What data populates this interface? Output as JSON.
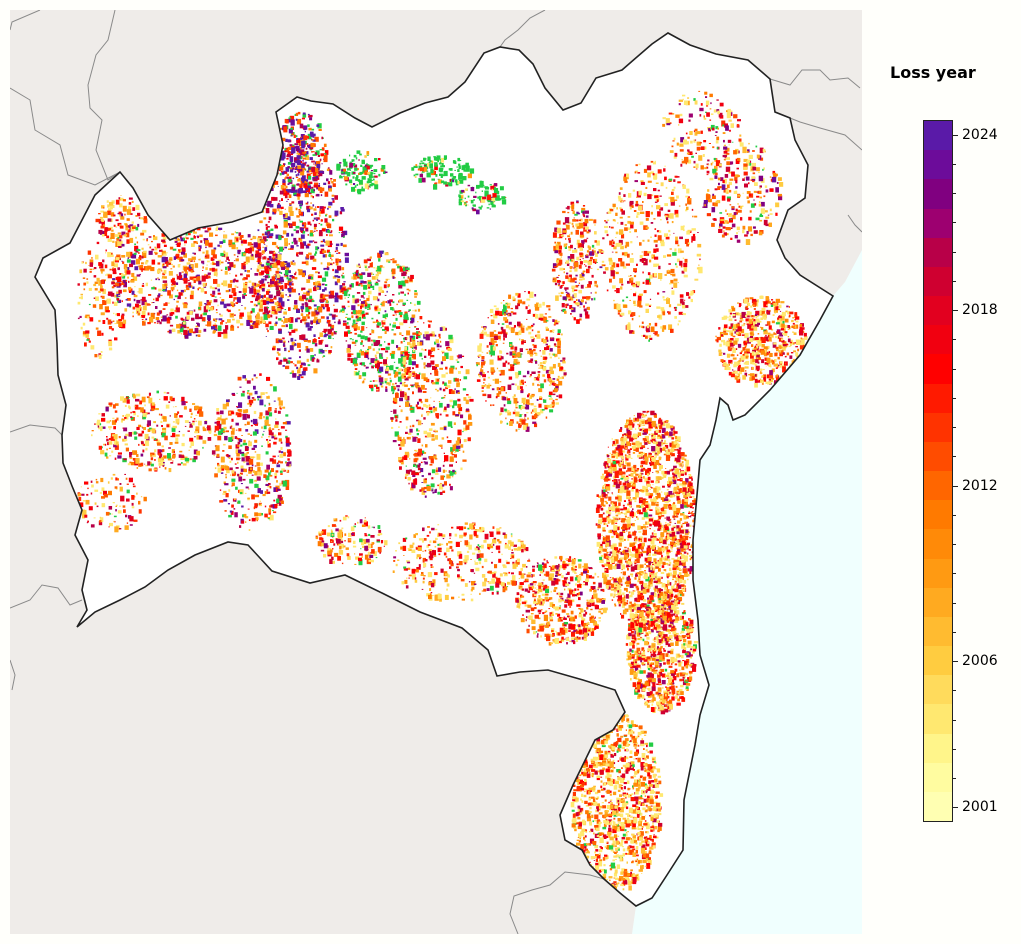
{
  "legend": {
    "title": "Loss year",
    "year_min": 2001,
    "year_max": 2024,
    "tick_labels": [
      "2024",
      "2018",
      "2012",
      "2006",
      "2001"
    ],
    "tick_years": [
      2024,
      2018,
      2012,
      2006,
      2001
    ],
    "colors": [
      "#ffffb2",
      "#fffca0",
      "#fff58a",
      "#ffe870",
      "#ffdb5c",
      "#ffcc40",
      "#ffbb30",
      "#ffaa20",
      "#ff9a12",
      "#ff8a08",
      "#ff7a00",
      "#ff6600",
      "#ff4c00",
      "#ff3300",
      "#ff1a00",
      "#ff0000",
      "#f10010",
      "#e2001f",
      "#cf0030",
      "#b80048",
      "#9d0070",
      "#800080",
      "#6c0c9a",
      "#5a1aa8"
    ]
  },
  "map": {
    "basemap_land_color": "#efece9",
    "region_fill_color": "#ffffff",
    "ocean_color": "#f0fffe",
    "boundary_color": "#222222",
    "neighbor_boundary_color": "#8a8a8a",
    "new_forest_color": "#22cc44"
  }
}
